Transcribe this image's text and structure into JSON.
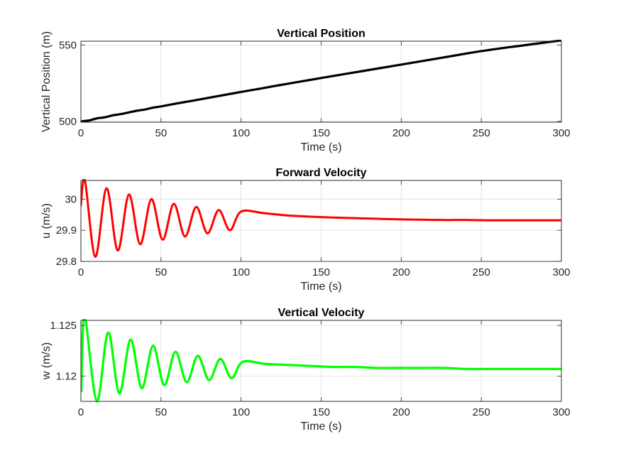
{
  "chart_data": [
    {
      "type": "line",
      "title": "Vertical Position",
      "xlabel": "Time (s)",
      "ylabel": "Vertical Position (m)",
      "xlim": [
        0,
        300
      ],
      "ylim": [
        499.5,
        552.5
      ],
      "xticks": [
        0,
        50,
        100,
        150,
        200,
        250,
        300
      ],
      "xtick_labels": [
        "0",
        "50",
        "100",
        "150",
        "200",
        "250",
        "300"
      ],
      "yticks": [
        500,
        550
      ],
      "ytick_labels": [
        "500",
        "550"
      ],
      "grid": true,
      "series": [
        {
          "color": "#000000",
          "x": [
            0,
            5,
            10,
            15,
            20,
            25,
            30,
            35,
            40,
            45,
            50,
            60,
            70,
            80,
            90,
            100,
            110,
            120,
            130,
            140,
            150,
            175,
            200,
            225,
            250,
            275,
            300
          ],
          "y": [
            500.0,
            500.6,
            502.0,
            502.7,
            504.0,
            504.8,
            505.9,
            507.0,
            507.8,
            509.0,
            509.8,
            511.8,
            513.6,
            515.5,
            517.4,
            519.3,
            521.1,
            523.0,
            524.8,
            526.6,
            528.4,
            532.8,
            537.2,
            541.6,
            546.0,
            549.6,
            553.0
          ]
        }
      ]
    },
    {
      "type": "line",
      "title": "Forward Velocity",
      "xlabel": "Time (s)",
      "ylabel": "u (m/s)",
      "xlim": [
        0,
        300
      ],
      "ylim": [
        29.8,
        30.06
      ],
      "xticks": [
        0,
        50,
        100,
        150,
        200,
        250,
        300
      ],
      "xtick_labels": [
        "0",
        "50",
        "100",
        "150",
        "200",
        "250",
        "300"
      ],
      "yticks": [
        29.8,
        29.9,
        30
      ],
      "ytick_labels": [
        "29.8",
        "29.9",
        "30"
      ],
      "grid": true,
      "series": [
        {
          "color": "#ff0000",
          "x": [
            0,
            2.5,
            9,
            16,
            23,
            30,
            37,
            44,
            51,
            58,
            65,
            72,
            79,
            86,
            93,
            100,
            114,
            128,
            142,
            156,
            170,
            184,
            198,
            212,
            226,
            240,
            254,
            268,
            282,
            300
          ],
          "y": [
            29.98,
            30.06,
            29.815,
            30.035,
            29.835,
            30.015,
            29.855,
            30.0,
            29.87,
            29.985,
            29.88,
            29.975,
            29.89,
            29.965,
            29.9,
            29.96,
            29.955,
            29.948,
            29.944,
            29.941,
            29.939,
            29.937,
            29.935,
            29.934,
            29.933,
            29.933,
            29.932,
            29.932,
            29.932,
            29.932
          ]
        }
      ]
    },
    {
      "type": "line",
      "title": "Vertical Velocity",
      "xlabel": "Time (s)",
      "ylabel": "w (m/s)",
      "xlim": [
        0,
        300
      ],
      "ylim": [
        1.1175,
        1.1255
      ],
      "xticks": [
        0,
        50,
        100,
        150,
        200,
        250,
        300
      ],
      "xtick_labels": [
        "0",
        "50",
        "100",
        "150",
        "200",
        "250",
        "300"
      ],
      "yticks": [
        1.12,
        1.125
      ],
      "ytick_labels": [
        "1.12",
        "1.125"
      ],
      "grid": true,
      "series": [
        {
          "color": "#00ff00",
          "x": [
            0.3,
            1.2,
            3,
            10,
            17,
            24,
            31,
            38,
            45,
            52,
            59,
            66,
            73,
            80,
            87,
            94,
            101,
            115,
            129,
            143,
            157,
            171,
            185,
            199,
            213,
            227,
            241,
            255,
            269,
            283,
            300
          ],
          "y": [
            1.1185,
            1.1245,
            1.1255,
            1.1175,
            1.1243,
            1.1183,
            1.1236,
            1.1188,
            1.123,
            1.1191,
            1.1224,
            1.1194,
            1.122,
            1.1196,
            1.1217,
            1.1198,
            1.1214,
            1.1212,
            1.1211,
            1.121,
            1.1209,
            1.1209,
            1.1208,
            1.1208,
            1.1208,
            1.1208,
            1.1207,
            1.1207,
            1.1207,
            1.1207,
            1.1207
          ]
        }
      ]
    }
  ]
}
